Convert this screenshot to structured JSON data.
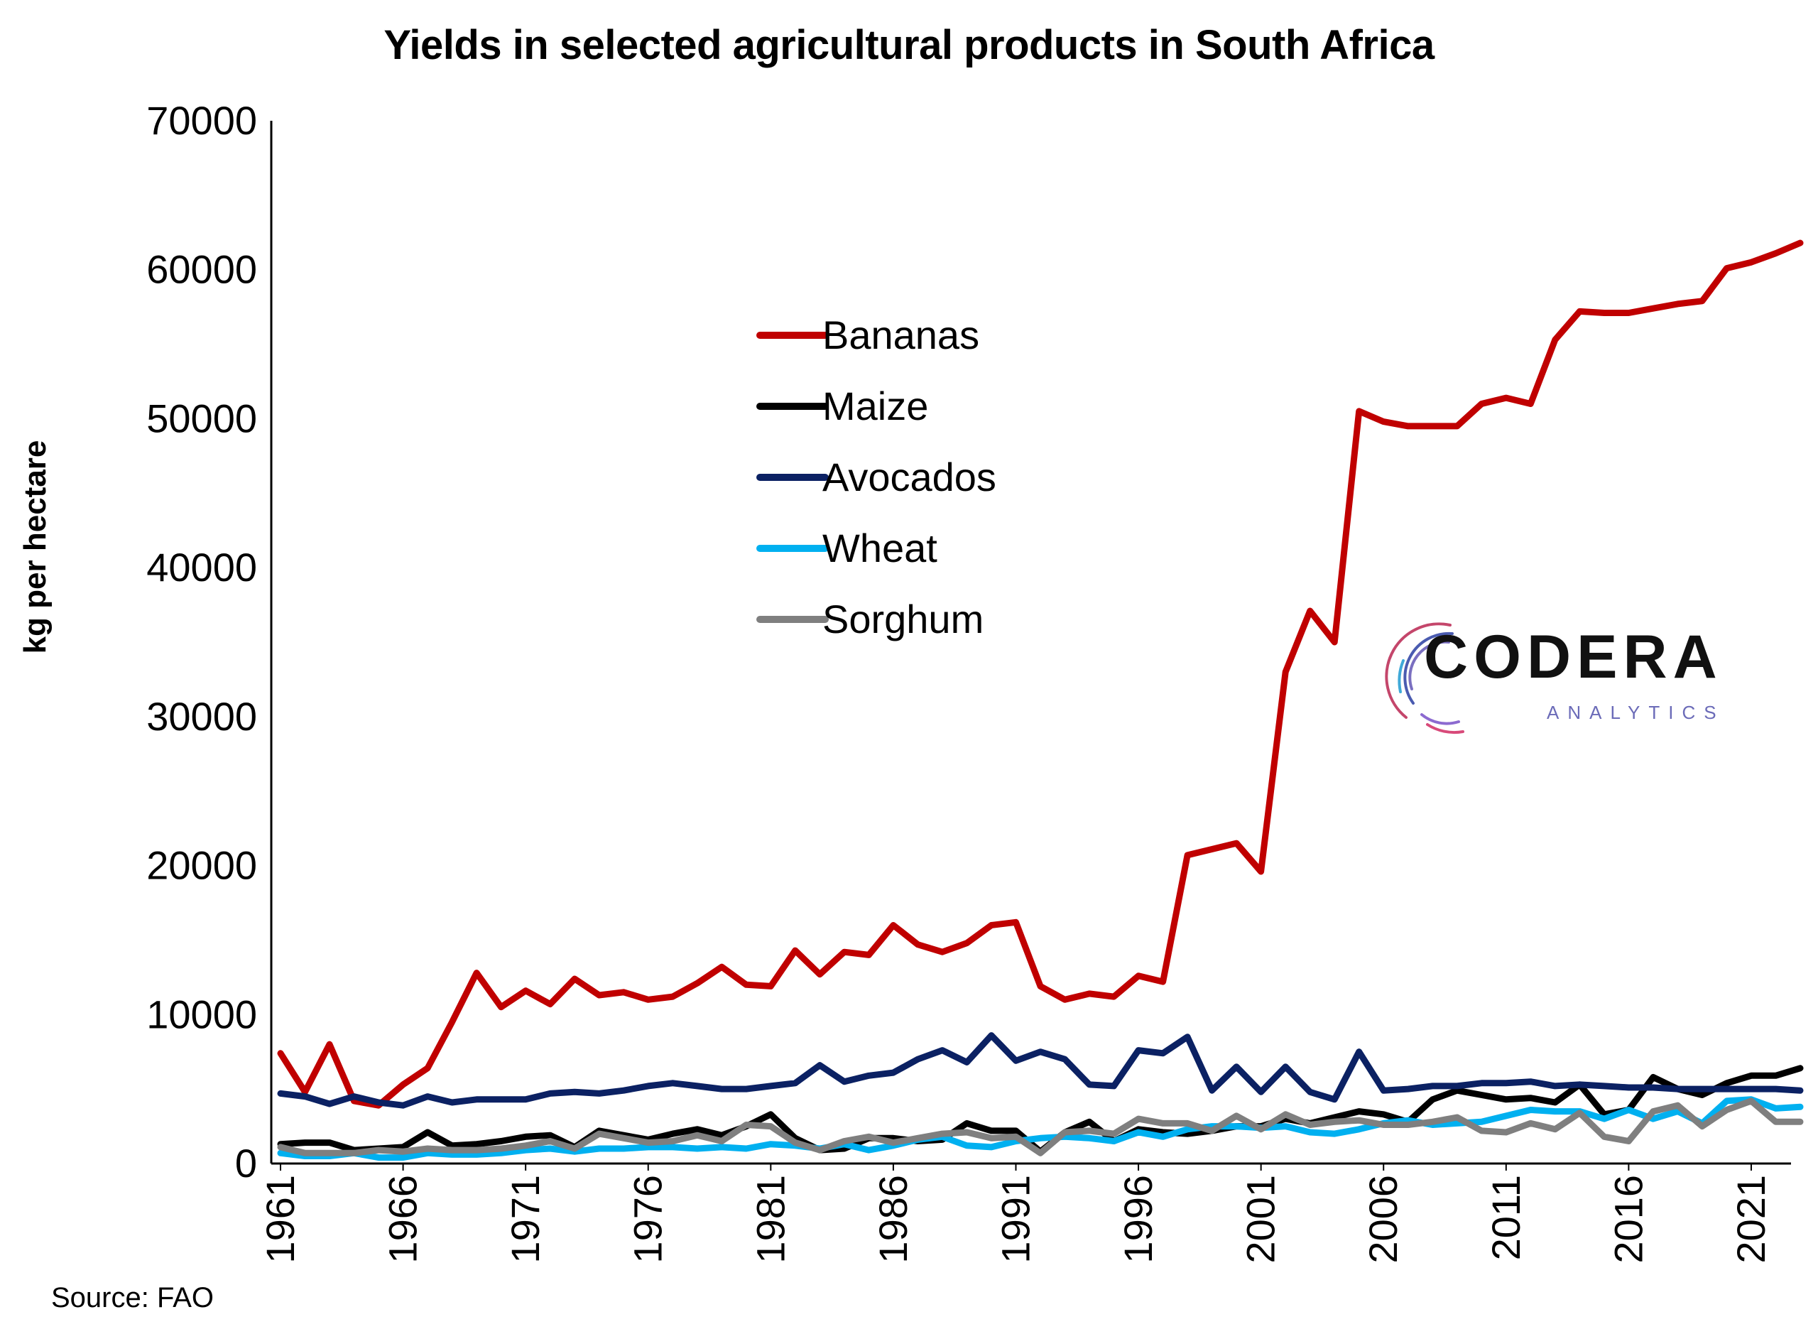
{
  "chart_data": {
    "type": "line",
    "title": "Yields in selected agricultural products in South Africa",
    "ylabel": "kg per hectare",
    "xlabel": "",
    "ylim": [
      0,
      70000
    ],
    "yticks": [
      "0",
      "10000",
      "20000",
      "30000",
      "40000",
      "50000",
      "60000",
      "70000"
    ],
    "xlim": [
      1961,
      2023
    ],
    "xticks": [
      "1961",
      "1966",
      "1971",
      "1976",
      "1981",
      "1986",
      "1991",
      "1996",
      "2001",
      "2006",
      "2011",
      "2016",
      "2021"
    ],
    "x": [
      1961,
      1962,
      1963,
      1964,
      1965,
      1966,
      1967,
      1968,
      1969,
      1970,
      1971,
      1972,
      1973,
      1974,
      1975,
      1976,
      1977,
      1978,
      1979,
      1980,
      1981,
      1982,
      1983,
      1984,
      1985,
      1986,
      1987,
      1988,
      1989,
      1990,
      1991,
      1992,
      1993,
      1994,
      1995,
      1996,
      1997,
      1998,
      1999,
      2000,
      2001,
      2002,
      2003,
      2004,
      2005,
      2006,
      2007,
      2008,
      2009,
      2010,
      2011,
      2012,
      2013,
      2014,
      2015,
      2016,
      2017,
      2018,
      2019,
      2020,
      2021,
      2022,
      2023
    ],
    "legend_position": "center",
    "grid": false,
    "series": [
      {
        "name": "Bananas",
        "color": "#c00000",
        "values": [
          7400,
          4800,
          8000,
          4200,
          3900,
          5300,
          6400,
          9500,
          12800,
          10500,
          11600,
          10700,
          12400,
          11300,
          11500,
          11000,
          11200,
          12100,
          13200,
          12000,
          11900,
          14300,
          12700,
          14200,
          14000,
          16000,
          14700,
          14200,
          14800,
          16000,
          16200,
          11900,
          11000,
          11400,
          11200,
          12600,
          12200,
          20700,
          21100,
          21500,
          19600,
          33000,
          37100,
          35000,
          50500,
          49800,
          49500,
          49500,
          49500,
          51000,
          51400,
          51000,
          55300,
          57200,
          57100,
          57100,
          57400,
          57700,
          57900,
          60100,
          60500,
          61100,
          61800
        ]
      },
      {
        "name": "Maize",
        "color": "#000000",
        "values": [
          1300,
          1400,
          1400,
          900,
          1000,
          1100,
          2100,
          1200,
          1300,
          1500,
          1800,
          1900,
          1100,
          2200,
          1900,
          1600,
          2000,
          2300,
          1900,
          2500,
          3300,
          1700,
          900,
          1000,
          1700,
          1700,
          1500,
          1600,
          2700,
          2200,
          2200,
          800,
          2100,
          2800,
          1500,
          2300,
          2100,
          2000,
          2200,
          2500,
          2500,
          3000,
          2700,
          3100,
          3500,
          3300,
          2800,
          4300,
          4900,
          4600,
          4300,
          4400,
          4100,
          5300,
          3300,
          3600,
          5800,
          5000,
          4600,
          5400,
          5900,
          5900,
          6400
        ]
      },
      {
        "name": "Avocados",
        "color": "#0b2163",
        "values": [
          4700,
          4500,
          4000,
          4500,
          4100,
          3900,
          4500,
          4100,
          4300,
          4300,
          4300,
          4700,
          4800,
          4700,
          4900,
          5200,
          5400,
          5200,
          5000,
          5000,
          5200,
          5400,
          6600,
          5500,
          5900,
          6100,
          7000,
          7600,
          6800,
          8600,
          6900,
          7500,
          7000,
          5300,
          5200,
          7600,
          7400,
          8500,
          4900,
          6500,
          4800,
          6500,
          4800,
          4300,
          7500,
          4900,
          5000,
          5200,
          5200,
          5400,
          5400,
          5500,
          5200,
          5300,
          5200,
          5100,
          5100,
          5000,
          5000,
          5000,
          5000,
          5000,
          4900
        ]
      },
      {
        "name": "Wheat",
        "color": "#00b0f0",
        "values": [
          700,
          500,
          500,
          700,
          400,
          400,
          700,
          600,
          600,
          700,
          900,
          1000,
          800,
          1000,
          1000,
          1100,
          1100,
          1000,
          1100,
          1000,
          1300,
          1200,
          1000,
          1300,
          900,
          1200,
          1600,
          1800,
          1200,
          1100,
          1500,
          1700,
          1800,
          1700,
          1500,
          2100,
          1800,
          2300,
          2500,
          2500,
          2400,
          2500,
          2100,
          2000,
          2300,
          2700,
          2900,
          2600,
          2700,
          2800,
          3200,
          3600,
          3500,
          3500,
          3000,
          3600,
          3000,
          3500,
          2700,
          4200,
          4300,
          3700,
          3800
        ]
      },
      {
        "name": "Sorghum",
        "color": "#7f7f7f",
        "values": [
          1100,
          700,
          700,
          700,
          900,
          800,
          1000,
          900,
          900,
          1000,
          1200,
          1500,
          1000,
          2000,
          1700,
          1400,
          1500,
          1900,
          1500,
          2600,
          2500,
          1400,
          900,
          1500,
          1800,
          1400,
          1700,
          2000,
          2100,
          1700,
          1800,
          700,
          2100,
          2200,
          2000,
          3000,
          2700,
          2700,
          2200,
          3200,
          2300,
          3300,
          2600,
          2800,
          2900,
          2600,
          2600,
          2800,
          3100,
          2200,
          2100,
          2700,
          2300,
          3400,
          1800,
          1500,
          3500,
          3900,
          2500,
          3600,
          4200,
          2800,
          2800
        ]
      }
    ]
  },
  "brand": {
    "name": "CODERA",
    "tagline": "ANALYTICS"
  },
  "source": "Source: FAO"
}
